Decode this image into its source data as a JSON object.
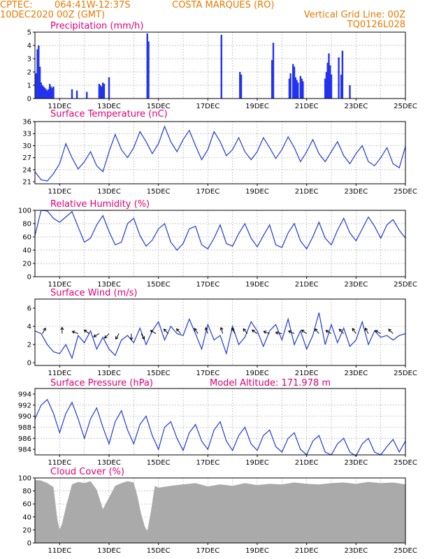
{
  "header": {
    "source": "CPTEC:",
    "coords": "064:41W-12:37S",
    "station": "COSTA MARQUES (RO)",
    "init": "10DEC2020 00Z (GMT)",
    "grid_note": "Vertical Grid Line: 00Z",
    "code": "TQ0126L028",
    "model_altitude": "Model Altitude: 171.978 m"
  },
  "colors": {
    "header": "#e67a00",
    "title": "#e0007a",
    "series": "#1f3bd6",
    "bars": "#2233ee",
    "cloud": "#aaaaaa"
  },
  "x_ticks": [
    "11DEC",
    "13DEC",
    "15DEC",
    "17DEC",
    "19DEC",
    "21DEC",
    "23DEC",
    "25DEC"
  ],
  "chart_data": [
    {
      "type": "bar",
      "title": "Precipitation (mm/h)",
      "ylim": [
        0,
        5
      ],
      "yticks": [
        "0",
        "1",
        "2",
        "3",
        "4",
        "5"
      ],
      "x_unit": "days since 10DEC2020 00Z",
      "x": [
        0.05,
        0.1,
        0.15,
        0.2,
        0.25,
        0.3,
        0.35,
        0.4,
        0.45,
        0.5,
        0.55,
        0.6,
        0.65,
        0.7,
        0.75,
        1.5,
        1.7,
        2.1,
        2.6,
        2.65,
        2.7,
        2.75,
        2.8,
        3.0,
        4.55,
        4.6,
        7.55,
        8.3,
        8.35,
        9.6,
        9.65,
        10.3,
        10.35,
        10.45,
        10.5,
        10.55,
        10.6,
        10.65,
        10.75,
        10.8,
        10.85,
        11.75,
        11.8,
        11.85,
        11.9,
        11.95,
        12.0,
        12.3,
        12.4,
        12.45,
        12.75
      ],
      "values": [
        1.9,
        3.7,
        4.0,
        2.4,
        1.2,
        1.0,
        0.9,
        0.8,
        0.7,
        0.6,
        0.7,
        1.1,
        0.9,
        0.8,
        0.9,
        0.7,
        0.6,
        0.5,
        1.1,
        1.0,
        0.9,
        1.2,
        1.1,
        1.6,
        4.9,
        4.3,
        4.8,
        2.0,
        1.8,
        2.9,
        4.2,
        1.5,
        1.9,
        2.6,
        2.4,
        1.6,
        1.4,
        1.2,
        1.7,
        1.5,
        1.3,
        1.5,
        2.0,
        2.7,
        3.4,
        2.5,
        1.8,
        3.1,
        1.8,
        3.6,
        1.0
      ]
    },
    {
      "type": "line",
      "title": "Surface Temperature (nC)",
      "ylim": [
        20.5,
        36
      ],
      "yticks": [
        "21",
        "24",
        "27",
        "30",
        "33",
        "36"
      ],
      "x_unit": "days since 10DEC2020 00Z",
      "x": [
        0,
        0.25,
        0.5,
        0.75,
        1,
        1.25,
        1.5,
        1.75,
        2,
        2.25,
        2.5,
        2.75,
        3,
        3.25,
        3.5,
        3.75,
        4,
        4.25,
        4.5,
        4.75,
        5,
        5.25,
        5.5,
        5.75,
        6,
        6.25,
        6.5,
        6.75,
        7,
        7.25,
        7.5,
        7.75,
        8,
        8.25,
        8.5,
        8.75,
        9,
        9.25,
        9.5,
        9.75,
        10,
        10.25,
        10.5,
        10.75,
        11,
        11.25,
        11.5,
        11.75,
        12,
        12.25,
        12.5,
        12.75,
        13,
        13.25,
        13.5,
        13.75,
        14,
        14.25,
        14.5,
        14.75,
        15
      ],
      "values": [
        23.5,
        21.5,
        21.2,
        23,
        25.5,
        30.5,
        27,
        24.2,
        26,
        28.5,
        25,
        23.5,
        28.5,
        32.8,
        29,
        27,
        29.5,
        33.5,
        31,
        28,
        30.5,
        34.8,
        31,
        28.5,
        31.5,
        33.8,
        30,
        26.5,
        29,
        33.5,
        31,
        27.5,
        29,
        32,
        28.5,
        26.5,
        28.5,
        32,
        29.5,
        26.8,
        29,
        32.2,
        29.5,
        26,
        28.5,
        31.5,
        28,
        26,
        28.5,
        31,
        27.5,
        25.5,
        28,
        30,
        26,
        25,
        27,
        29.5,
        25.5,
        24.5,
        29.8
      ]
    },
    {
      "type": "line",
      "title": "Relative Humidity (%)",
      "ylim": [
        0,
        100
      ],
      "yticks": [
        "0",
        "20",
        "40",
        "60",
        "80",
        "100"
      ],
      "x_unit": "days since 10DEC2020 00Z",
      "x": [
        0,
        0.25,
        0.5,
        0.75,
        1,
        1.25,
        1.5,
        1.75,
        2,
        2.25,
        2.5,
        2.75,
        3,
        3.25,
        3.5,
        3.75,
        4,
        4.25,
        4.5,
        4.75,
        5,
        5.25,
        5.5,
        5.75,
        6,
        6.25,
        6.5,
        6.75,
        7,
        7.25,
        7.5,
        7.75,
        8,
        8.25,
        8.5,
        8.75,
        9,
        9.25,
        9.5,
        9.75,
        10,
        10.25,
        10.5,
        10.75,
        11,
        11.25,
        11.5,
        11.75,
        12,
        12.25,
        12.5,
        12.75,
        13,
        13.25,
        13.5,
        13.75,
        14,
        14.25,
        14.5,
        14.75,
        15
      ],
      "values": [
        62,
        100,
        99,
        88,
        82,
        90,
        98,
        75,
        52,
        58,
        78,
        92,
        68,
        48,
        52,
        80,
        88,
        62,
        46,
        55,
        72,
        80,
        52,
        40,
        50,
        72,
        76,
        48,
        42,
        58,
        78,
        50,
        46,
        65,
        80,
        58,
        45,
        62,
        78,
        48,
        44,
        66,
        80,
        54,
        42,
        60,
        82,
        58,
        48,
        70,
        88,
        66,
        54,
        72,
        90,
        76,
        58,
        78,
        86,
        70,
        58
      ]
    },
    {
      "type": "line",
      "title": "Surface Wind (m/s)",
      "ylim": [
        -0.3,
        7
      ],
      "yticks": [
        "0",
        "2",
        "4",
        "6"
      ],
      "x_unit": "days since 10DEC2020 00Z",
      "x": [
        0,
        0.25,
        0.5,
        0.75,
        1,
        1.25,
        1.5,
        1.75,
        2,
        2.25,
        2.5,
        2.75,
        3,
        3.25,
        3.5,
        3.75,
        4,
        4.25,
        4.5,
        4.75,
        5,
        5.25,
        5.5,
        5.75,
        6,
        6.25,
        6.5,
        6.75,
        7,
        7.25,
        7.5,
        7.75,
        8,
        8.25,
        8.5,
        8.75,
        9,
        9.25,
        9.5,
        9.75,
        10,
        10.25,
        10.5,
        10.75,
        11,
        11.25,
        11.5,
        11.75,
        12,
        12.25,
        12.5,
        12.75,
        13,
        13.25,
        13.5,
        13.75,
        14,
        14.25,
        14.5,
        14.75,
        15
      ],
      "values": [
        3.5,
        3.2,
        2.0,
        1.2,
        1.0,
        2.0,
        0.5,
        3.0,
        2.2,
        3.5,
        1.5,
        2.8,
        1.5,
        0.8,
        2.5,
        3.0,
        2.2,
        3.8,
        2.0,
        3.5,
        4.5,
        2.5,
        4.0,
        3.2,
        3.0,
        4.8,
        3.2,
        1.5,
        4.2,
        2.5,
        3.0,
        1.0,
        4.0,
        2.0,
        2.8,
        4.5,
        3.5,
        1.8,
        3.5,
        4.2,
        2.5,
        4.8,
        2.0,
        3.5,
        1.5,
        3.0,
        5.5,
        2.0,
        4.2,
        2.2,
        3.8,
        1.8,
        2.5,
        4.5,
        2.0,
        3.5,
        2.8,
        3.0,
        2.5,
        3.0,
        3.2
      ],
      "wind_arrows": {
        "x": [
          0.3,
          1.1,
          1.75,
          2.2,
          2.6,
          3.0,
          3.4,
          3.9,
          4.3,
          4.9,
          5.4,
          5.9,
          6.6,
          7.0,
          7.6,
          8.1,
          8.6,
          9.0,
          9.5,
          10.0,
          10.5,
          11.0,
          11.5,
          12.0,
          12.5,
          13.0,
          13.5,
          14.0,
          14.5
        ],
        "dir_deg": [
          300,
          270,
          200,
          215,
          150,
          135,
          120,
          90,
          60,
          210,
          225,
          230,
          235,
          250,
          255,
          240,
          230,
          215,
          200,
          190,
          205,
          215,
          230,
          210,
          225,
          235,
          240,
          210,
          225
        ]
      }
    },
    {
      "type": "line",
      "title": "Surface Pressure (hPa)",
      "ylim": [
        983,
        995
      ],
      "yticks": [
        "984",
        "986",
        "988",
        "990",
        "992",
        "994"
      ],
      "x_unit": "days since 10DEC2020 00Z",
      "x": [
        0,
        0.25,
        0.5,
        0.75,
        1,
        1.25,
        1.5,
        1.75,
        2,
        2.25,
        2.5,
        2.75,
        3,
        3.25,
        3.5,
        3.75,
        4,
        4.25,
        4.5,
        4.75,
        5,
        5.25,
        5.5,
        5.75,
        6,
        6.25,
        6.5,
        6.75,
        7,
        7.25,
        7.5,
        7.75,
        8,
        8.25,
        8.5,
        8.75,
        9,
        9.25,
        9.5,
        9.75,
        10,
        10.25,
        10.5,
        10.75,
        11,
        11.25,
        11.5,
        11.75,
        12,
        12.25,
        12.5,
        12.75,
        13,
        13.25,
        13.5,
        13.75,
        14,
        14.25,
        14.5,
        14.75,
        15
      ],
      "values": [
        989.5,
        992,
        993,
        990.5,
        987,
        990.5,
        992.5,
        989.5,
        986,
        989.5,
        991.5,
        988,
        985,
        989,
        991,
        987.5,
        985,
        988.5,
        990,
        986.5,
        984,
        988,
        989,
        986,
        983.8,
        987,
        988.5,
        985.5,
        984,
        987.5,
        989,
        985.5,
        983.8,
        986.5,
        988,
        985,
        983.8,
        986.5,
        987.5,
        984.5,
        983.5,
        986,
        987,
        984,
        983,
        985.5,
        986.5,
        983.5,
        983,
        985,
        986,
        983.5,
        982.8,
        985,
        986,
        983.5,
        983,
        984.5,
        985.8,
        983.5,
        985.5
      ]
    },
    {
      "type": "area",
      "title": "Cloud Cover (%)",
      "ylim": [
        0,
        100
      ],
      "yticks": [
        "0",
        "20",
        "40",
        "60",
        "80",
        "100"
      ],
      "x_unit": "days since 10DEC2020 00Z",
      "x": [
        0,
        0.25,
        0.5,
        0.75,
        0.9,
        1.0,
        1.1,
        1.25,
        1.5,
        1.75,
        2,
        2.25,
        2.5,
        2.75,
        3,
        3.25,
        3.5,
        3.75,
        4,
        4.15,
        4.3,
        4.45,
        4.55,
        4.7,
        4.85,
        5.0,
        5.5,
        6,
        6.5,
        7,
        7.5,
        8,
        8.5,
        9,
        9.5,
        10,
        10.5,
        11,
        11.5,
        12,
        12.5,
        13,
        13.5,
        14,
        14.5,
        15
      ],
      "values": [
        97,
        96,
        92,
        86,
        38,
        20,
        30,
        55,
        90,
        94,
        92,
        95,
        82,
        52,
        70,
        88,
        92,
        95,
        93,
        72,
        45,
        25,
        18,
        50,
        88,
        85,
        88,
        90,
        92,
        87,
        90,
        88,
        92,
        89,
        91,
        90,
        93,
        91,
        90,
        92,
        93,
        91,
        94,
        92,
        93,
        90
      ]
    }
  ]
}
